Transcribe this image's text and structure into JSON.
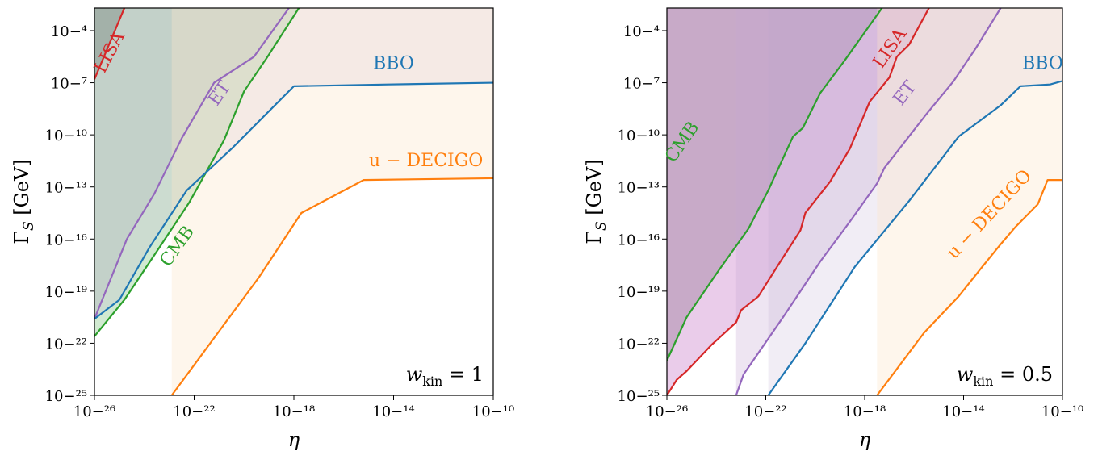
{
  "chart_data": [
    {
      "type": "line",
      "xlabel": "η",
      "ylabel": "Γ_S [GeV]",
      "x_scale": "log",
      "y_scale": "log",
      "xlim_exp": [
        -26,
        -10
      ],
      "ylim_exp": [
        -25,
        -2.7
      ],
      "xtick_exps": [
        -26,
        -22,
        -18,
        -14,
        -10
      ],
      "ytick_exps": [
        -25,
        -22,
        -19,
        -16,
        -13,
        -10,
        -7,
        -4
      ],
      "annotation": {
        "prefix": "w",
        "sub": "kin",
        "suffix": " = 1"
      },
      "series": [
        {
          "name": "LISA",
          "color": "#d62728",
          "fill": "#8c8c8c",
          "fill_opacity": 0.55,
          "points": [
            [
              -26,
              -6.8
            ],
            [
              -24.8,
              -2.7
            ]
          ]
        },
        {
          "name": "ET",
          "color": "#9467bd",
          "fill": "#b7a6cf",
          "fill_opacity": 0.2,
          "points": [
            [
              -26,
              -20.6
            ],
            [
              -24.7,
              -16.0
            ],
            [
              -23.6,
              -13.4
            ],
            [
              -22.5,
              -10.2
            ],
            [
              -21.2,
              -7.0
            ],
            [
              -19.6,
              -5.5
            ],
            [
              -18.2,
              -2.7
            ]
          ]
        },
        {
          "name": "CMB",
          "color": "#2ca02c",
          "fill": "#2ca02c",
          "fill_opacity": 0.22,
          "points": [
            [
              -26,
              -21.6
            ],
            [
              -24.8,
              -19.5
            ],
            [
              -23.4,
              -16.5
            ],
            [
              -22.2,
              -13.9
            ],
            [
              -20.8,
              -10.3
            ],
            [
              -20.0,
              -7.5
            ],
            [
              -19.1,
              -5.6
            ],
            [
              -17.8,
              -2.7
            ]
          ]
        },
        {
          "name": "BBO",
          "color": "#1f77b4",
          "fill": "#b7a6cf",
          "fill_opacity": 0.2,
          "points": [
            [
              -26,
              -20.6
            ],
            [
              -25.0,
              -19.5
            ],
            [
              -23.8,
              -16.5
            ],
            [
              -22.3,
              -13.2
            ],
            [
              -20.5,
              -10.8
            ],
            [
              -18.0,
              -7.2
            ],
            [
              -14.2,
              -7.1
            ],
            [
              -10.0,
              -7.0
            ]
          ]
        },
        {
          "name": "u − DECIGO",
          "color": "#ff7f0e",
          "fill": "#fde4c8",
          "fill_opacity": 0.35,
          "points": [
            [
              -22.9,
              -25.0
            ],
            [
              -19.4,
              -18.2
            ],
            [
              -17.7,
              -14.5
            ],
            [
              -15.2,
              -12.6
            ],
            [
              -10.0,
              -12.5
            ]
          ]
        }
      ]
    },
    {
      "type": "line",
      "xlabel": "η",
      "ylabel": "Γ_S [GeV]",
      "x_scale": "log",
      "y_scale": "log",
      "xlim_exp": [
        -26,
        -10
      ],
      "ylim_exp": [
        -25,
        -2.7
      ],
      "xtick_exps": [
        -26,
        -22,
        -18,
        -14,
        -10
      ],
      "ytick_exps": [
        -25,
        -22,
        -19,
        -16,
        -13,
        -10,
        -7,
        -4
      ],
      "annotation": {
        "prefix": "w",
        "sub": "kin",
        "suffix": " = 0.5"
      },
      "series": [
        {
          "name": "CMB",
          "color": "#2ca02c",
          "fill": "#8c8c8c",
          "fill_opacity": 0.65,
          "points": [
            [
              -26,
              -23.0
            ],
            [
              -25.2,
              -20.5
            ],
            [
              -24.0,
              -18.0
            ],
            [
              -22.7,
              -15.4
            ],
            [
              -21.9,
              -13.2
            ],
            [
              -20.9,
              -10.1
            ],
            [
              -20.5,
              -9.6
            ],
            [
              -19.8,
              -7.6
            ],
            [
              -18.8,
              -5.7
            ],
            [
              -17.3,
              -2.7
            ]
          ]
        },
        {
          "name": "LISA",
          "color": "#d62728",
          "fill": "#d9a3d9",
          "fill_opacity": 0.55,
          "points": [
            [
              -26,
              -25.0
            ],
            [
              -25.6,
              -24.1
            ],
            [
              -25.2,
              -23.6
            ],
            [
              -24.2,
              -22.1
            ],
            [
              -23.2,
              -20.8
            ],
            [
              -23.0,
              -20.1
            ],
            [
              -22.3,
              -19.3
            ],
            [
              -21.5,
              -17.5
            ],
            [
              -20.6,
              -15.5
            ],
            [
              -20.4,
              -14.5
            ],
            [
              -19.4,
              -12.7
            ],
            [
              -18.6,
              -10.8
            ],
            [
              -17.8,
              -8.1
            ],
            [
              -17.0,
              -6.7
            ],
            [
              -16.7,
              -5.5
            ],
            [
              -16.2,
              -4.8
            ],
            [
              -15.4,
              -2.7
            ]
          ]
        },
        {
          "name": "ET",
          "color": "#9467bd",
          "fill": "#c8a9d4",
          "fill_opacity": 0.3,
          "points": [
            [
              -23.2,
              -25.0
            ],
            [
              -22.9,
              -23.8
            ],
            [
              -21.3,
              -20.5
            ],
            [
              -19.8,
              -17.3
            ],
            [
              -18.6,
              -15.0
            ],
            [
              -17.5,
              -12.8
            ],
            [
              -17.2,
              -11.9
            ],
            [
              -15.5,
              -8.8
            ],
            [
              -14.4,
              -6.9
            ],
            [
              -13.5,
              -5.0
            ],
            [
              -12.5,
              -2.7
            ]
          ]
        },
        {
          "name": "BBO",
          "color": "#1f77b4",
          "fill": "#b7a6cf",
          "fill_opacity": 0.2,
          "points": [
            [
              -21.9,
              -25.0
            ],
            [
              -20.4,
              -22.0
            ],
            [
              -18.4,
              -17.6
            ],
            [
              -16.2,
              -13.8
            ],
            [
              -14.2,
              -10.1
            ],
            [
              -12.5,
              -8.3
            ],
            [
              -11.7,
              -7.2
            ],
            [
              -10.5,
              -7.1
            ],
            [
              -10.0,
              -6.9
            ]
          ]
        },
        {
          "name": "u − DECIGO",
          "color": "#ff7f0e",
          "fill": "#fde4c8",
          "fill_opacity": 0.35,
          "points": [
            [
              -17.5,
              -25.0
            ],
            [
              -15.6,
              -21.4
            ],
            [
              -14.2,
              -19.3
            ],
            [
              -13.3,
              -17.7
            ],
            [
              -12.5,
              -16.3
            ],
            [
              -11.9,
              -15.3
            ],
            [
              -11.0,
              -14.0
            ],
            [
              -10.6,
              -12.6
            ],
            [
              -10.0,
              -12.6
            ]
          ]
        }
      ]
    }
  ]
}
